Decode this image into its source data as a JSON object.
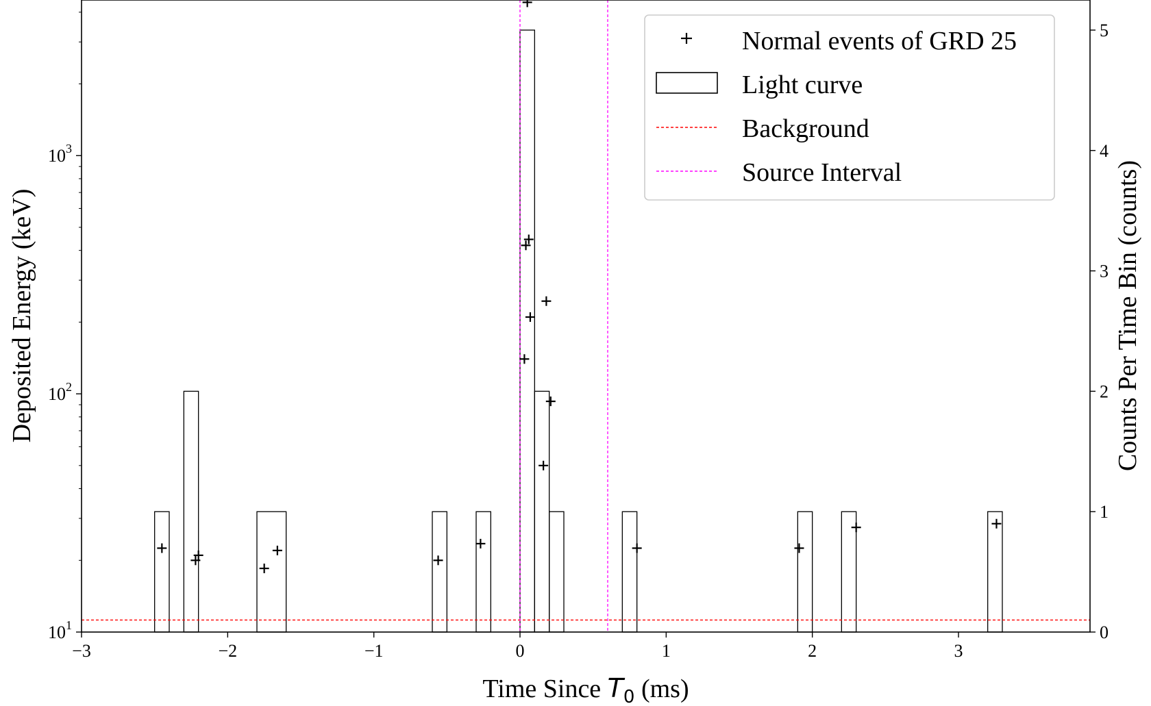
{
  "chart_data": {
    "type": "scatter",
    "xlabel_prefix": "Time Since ",
    "xlabel_symbol": "T",
    "xlabel_subscript": "0",
    "xlabel_suffix": " (ms)",
    "ylabel_left": "Deposited Energy (keV)",
    "ylabel_right": "Counts Per Time Bin (counts)",
    "xlim": [
      -3,
      3.9
    ],
    "ylim_left": [
      10,
      4500
    ],
    "yscale_left": "log",
    "ylim_right": [
      0,
      5.25
    ],
    "x_ticks": [
      {
        "value": -3,
        "label": "−3"
      },
      {
        "value": -2,
        "label": "−2"
      },
      {
        "value": -1,
        "label": "−1"
      },
      {
        "value": 0,
        "label": "0"
      },
      {
        "value": 1,
        "label": "1"
      },
      {
        "value": 2,
        "label": "2"
      },
      {
        "value": 3,
        "label": "3"
      }
    ],
    "y_left_ticks": [
      {
        "value": 10,
        "base": "10",
        "exp": "1"
      },
      {
        "value": 100,
        "base": "10",
        "exp": "2"
      },
      {
        "value": 1000,
        "base": "10",
        "exp": "3"
      }
    ],
    "y_right_ticks": [
      {
        "value": 0,
        "label": "0"
      },
      {
        "value": 1,
        "label": "1"
      },
      {
        "value": 2,
        "label": "2"
      },
      {
        "value": 3,
        "label": "3"
      },
      {
        "value": 4,
        "label": "4"
      },
      {
        "value": 5,
        "label": "5"
      }
    ],
    "legend_position": "top-right",
    "series": [
      {
        "name": "Normal events of GRD 25",
        "kind": "scatter",
        "marker": "+",
        "color": "#000000",
        "points": [
          {
            "x": -2.45,
            "y": 22.5
          },
          {
            "x": -2.22,
            "y": 20
          },
          {
            "x": -2.2,
            "y": 21
          },
          {
            "x": -1.75,
            "y": 18.5
          },
          {
            "x": -1.66,
            "y": 22
          },
          {
            "x": -0.56,
            "y": 20
          },
          {
            "x": -0.27,
            "y": 23.5
          },
          {
            "x": 0.03,
            "y": 140
          },
          {
            "x": 0.04,
            "y": 420
          },
          {
            "x": 0.06,
            "y": 445
          },
          {
            "x": 0.05,
            "y": 4400
          },
          {
            "x": 0.07,
            "y": 210
          },
          {
            "x": 0.16,
            "y": 50
          },
          {
            "x": 0.18,
            "y": 245
          },
          {
            "x": 0.21,
            "y": 93
          },
          {
            "x": 0.8,
            "y": 22.5
          },
          {
            "x": 1.91,
            "y": 22.5
          },
          {
            "x": 2.3,
            "y": 27.5
          },
          {
            "x": 3.26,
            "y": 28.5
          }
        ]
      },
      {
        "name": "Light curve",
        "kind": "histogram",
        "axis": "right",
        "color": "#000000",
        "bins": [
          {
            "x0": -2.5,
            "x1": -2.4,
            "count": 1
          },
          {
            "x0": -2.3,
            "x1": -2.2,
            "count": 2
          },
          {
            "x0": -1.8,
            "x1": -1.6,
            "count": 1
          },
          {
            "x0": -0.6,
            "x1": -0.5,
            "count": 1
          },
          {
            "x0": -0.3,
            "x1": -0.2,
            "count": 1
          },
          {
            "x0": 0.0,
            "x1": 0.1,
            "count": 5
          },
          {
            "x0": 0.1,
            "x1": 0.2,
            "count": 2
          },
          {
            "x0": 0.2,
            "x1": 0.3,
            "count": 1
          },
          {
            "x0": 0.7,
            "x1": 0.8,
            "count": 1
          },
          {
            "x0": 1.9,
            "x1": 2.0,
            "count": 1
          },
          {
            "x0": 2.2,
            "x1": 2.3,
            "count": 1
          },
          {
            "x0": 3.2,
            "x1": 3.3,
            "count": 1
          }
        ]
      },
      {
        "name": "Background",
        "kind": "hline",
        "axis": "right",
        "color": "#ff0000",
        "value": 0.1
      },
      {
        "name": "Source Interval",
        "kind": "vlines",
        "color": "#ff00ff",
        "values": [
          0.0,
          0.6
        ]
      }
    ]
  }
}
